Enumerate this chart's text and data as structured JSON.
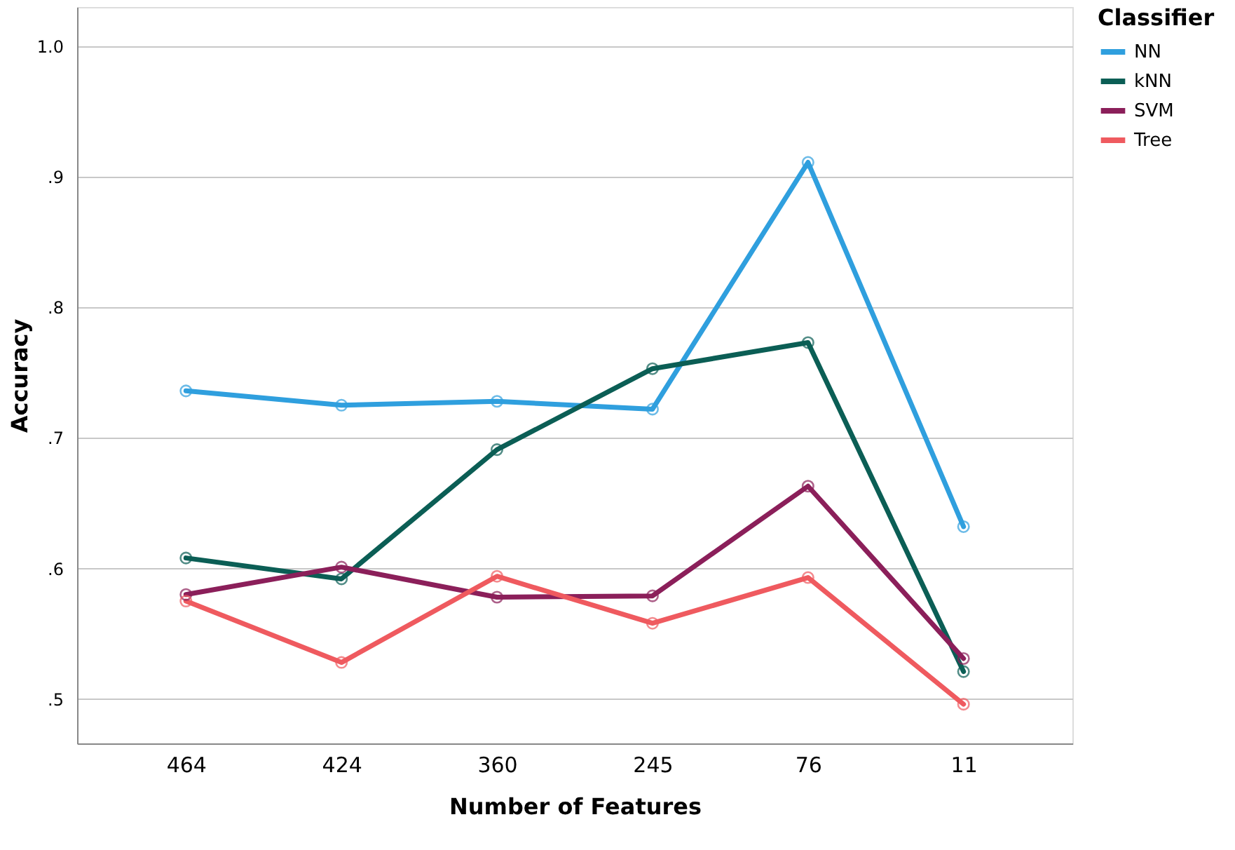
{
  "chart_data": {
    "type": "line",
    "xlabel": "Number of Features",
    "ylabel": "Accuracy",
    "legend_title": "Classifier",
    "categories": [
      "464",
      "424",
      "360",
      "245",
      "76",
      "11"
    ],
    "series": [
      {
        "name": "NN",
        "color": "#2f9fde",
        "values": [
          0.736,
          0.725,
          0.728,
          0.722,
          0.911,
          0.632
        ]
      },
      {
        "name": "kNN",
        "color": "#0b5e55",
        "values": [
          0.608,
          0.592,
          0.691,
          0.753,
          0.773,
          0.521
        ]
      },
      {
        "name": "SVM",
        "color": "#8b1f5a",
        "values": [
          0.58,
          0.601,
          0.578,
          0.579,
          0.663,
          0.531
        ]
      },
      {
        "name": "Tree",
        "color": "#ef5a5f",
        "values": [
          0.575,
          0.528,
          0.594,
          0.558,
          0.593,
          0.496
        ]
      }
    ],
    "ylim": [
      0.466,
      1.03
    ],
    "yticks": [
      {
        "value": 0.5,
        "label": ".5"
      },
      {
        "value": 0.6,
        "label": ".6"
      },
      {
        "value": 0.7,
        "label": ".7"
      },
      {
        "value": 0.8,
        "label": ".8"
      },
      {
        "value": 0.9,
        "label": ".9"
      },
      {
        "value": 1.0,
        "label": "1.0"
      }
    ],
    "grid": "y",
    "legend": "top right",
    "marker": "circle",
    "line_style": "solid"
  }
}
